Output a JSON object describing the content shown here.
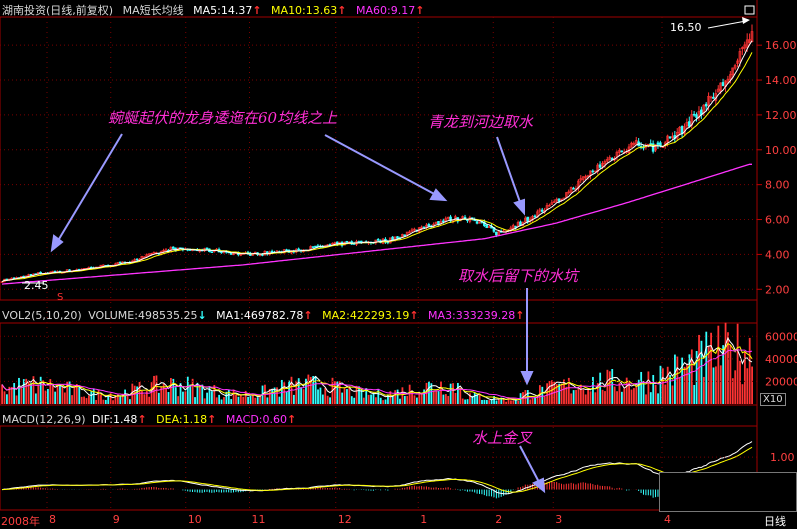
{
  "price_header": {
    "title": "湖南投资(日线,前复权)",
    "indicator": "MA短长均线",
    "ma5": "MA5:14.37",
    "ma10": "MA10:13.63",
    "ma60": "MA60:9.17",
    "arrow": "↑"
  },
  "volume_header": {
    "title": "VOL2(5,10,20)",
    "volume": "VOLUME:498535.25",
    "vol_arrow": "↓",
    "ma1": "MA1:469782.78",
    "ma2": "MA2:422293.19",
    "ma3": "MA3:333239.28",
    "arrow": "↑"
  },
  "macd_header": {
    "title": "MACD(12,26,9)",
    "dif": "DIF:1.48",
    "dea": "DEA:1.18",
    "macd": "MACD:0.60",
    "arrow": "↑"
  },
  "annotations": {
    "dragon": "蜿蜒起伏的龙身逶迤在60均线之上",
    "water": "青龙到河边取水",
    "pit": "取水后留下的水坑",
    "golden": "水上金叉"
  },
  "price_labels": {
    "high": "16.50",
    "low": "2.45",
    "marker": "S"
  },
  "axis_footer": {
    "year": "2008年",
    "ticks": [
      "8",
      "9",
      "10",
      "11",
      "12",
      "1",
      "2",
      "3",
      "4"
    ],
    "period": "日线",
    "vol_unit": "X10"
  },
  "colors": {
    "up": "#ff3333",
    "down": "#33ffff",
    "ma5": "#ffffff",
    "ma10": "#ffff00",
    "ma60": "#ff33ff",
    "grid": "#7a0000"
  },
  "chart_data": [
    {
      "type": "candlestick",
      "title": "湖南投资(日线,前复权)",
      "y_ticks": [
        "2.00",
        "4.00",
        "6.00",
        "8.00",
        "10.00",
        "12.00",
        "14.00",
        "16.00"
      ],
      "ylim": [
        1.5,
        17.5
      ],
      "high": 16.5,
      "low": 2.45,
      "series": [
        {
          "name": "MA5",
          "last": 14.37
        },
        {
          "name": "MA10",
          "last": 13.63
        },
        {
          "name": "MA60",
          "last": 9.17
        }
      ],
      "x_ticks": [
        "8",
        "9",
        "10",
        "11",
        "12",
        "1",
        "2",
        "3",
        "4"
      ],
      "close_path": [
        {
          "i": 0,
          "v": 2.5
        },
        {
          "i": 15,
          "v": 2.9
        },
        {
          "i": 30,
          "v": 3.1
        },
        {
          "i": 50,
          "v": 3.5
        },
        {
          "i": 70,
          "v": 4.3
        },
        {
          "i": 90,
          "v": 4.2
        },
        {
          "i": 100,
          "v": 4.0
        },
        {
          "i": 120,
          "v": 4.2
        },
        {
          "i": 140,
          "v": 4.6
        },
        {
          "i": 160,
          "v": 4.8
        },
        {
          "i": 175,
          "v": 5.6
        },
        {
          "i": 185,
          "v": 6.0
        },
        {
          "i": 195,
          "v": 6.1
        },
        {
          "i": 205,
          "v": 5.2
        },
        {
          "i": 215,
          "v": 5.8
        },
        {
          "i": 230,
          "v": 7.0
        },
        {
          "i": 245,
          "v": 8.8
        },
        {
          "i": 255,
          "v": 9.8
        },
        {
          "i": 262,
          "v": 10.4
        },
        {
          "i": 270,
          "v": 10.1
        },
        {
          "i": 280,
          "v": 10.9
        },
        {
          "i": 290,
          "v": 12.3
        },
        {
          "i": 298,
          "v": 13.6
        },
        {
          "i": 305,
          "v": 15.0
        },
        {
          "i": 310,
          "v": 16.5
        }
      ],
      "ma60_path": [
        {
          "i": 0,
          "v": 2.3
        },
        {
          "i": 100,
          "v": 3.4
        },
        {
          "i": 200,
          "v": 4.9
        },
        {
          "i": 230,
          "v": 5.8
        },
        {
          "i": 260,
          "v": 7.0
        },
        {
          "i": 290,
          "v": 8.3
        },
        {
          "i": 310,
          "v": 9.17
        }
      ]
    },
    {
      "type": "bar",
      "title": "VOL2(5,10,20)",
      "y_ticks": [
        "20000",
        "40000",
        "60000"
      ],
      "ylim": [
        0,
        70000
      ],
      "unit": "X10",
      "series": [
        {
          "name": "VOLUME",
          "last": 498535.25
        },
        {
          "name": "MA1",
          "last": 469782.78
        },
        {
          "name": "MA2",
          "last": 422293.19
        },
        {
          "name": "MA3",
          "last": 333239.28
        }
      ]
    },
    {
      "type": "bar",
      "title": "MACD(12,26,9)",
      "y_ticks": [
        "1.00"
      ],
      "ylim": [
        -0.6,
        1.9
      ],
      "series": [
        {
          "name": "DIF",
          "last": 1.48
        },
        {
          "name": "DEA",
          "last": 1.18
        },
        {
          "name": "MACD",
          "last": 0.6
        }
      ]
    }
  ]
}
